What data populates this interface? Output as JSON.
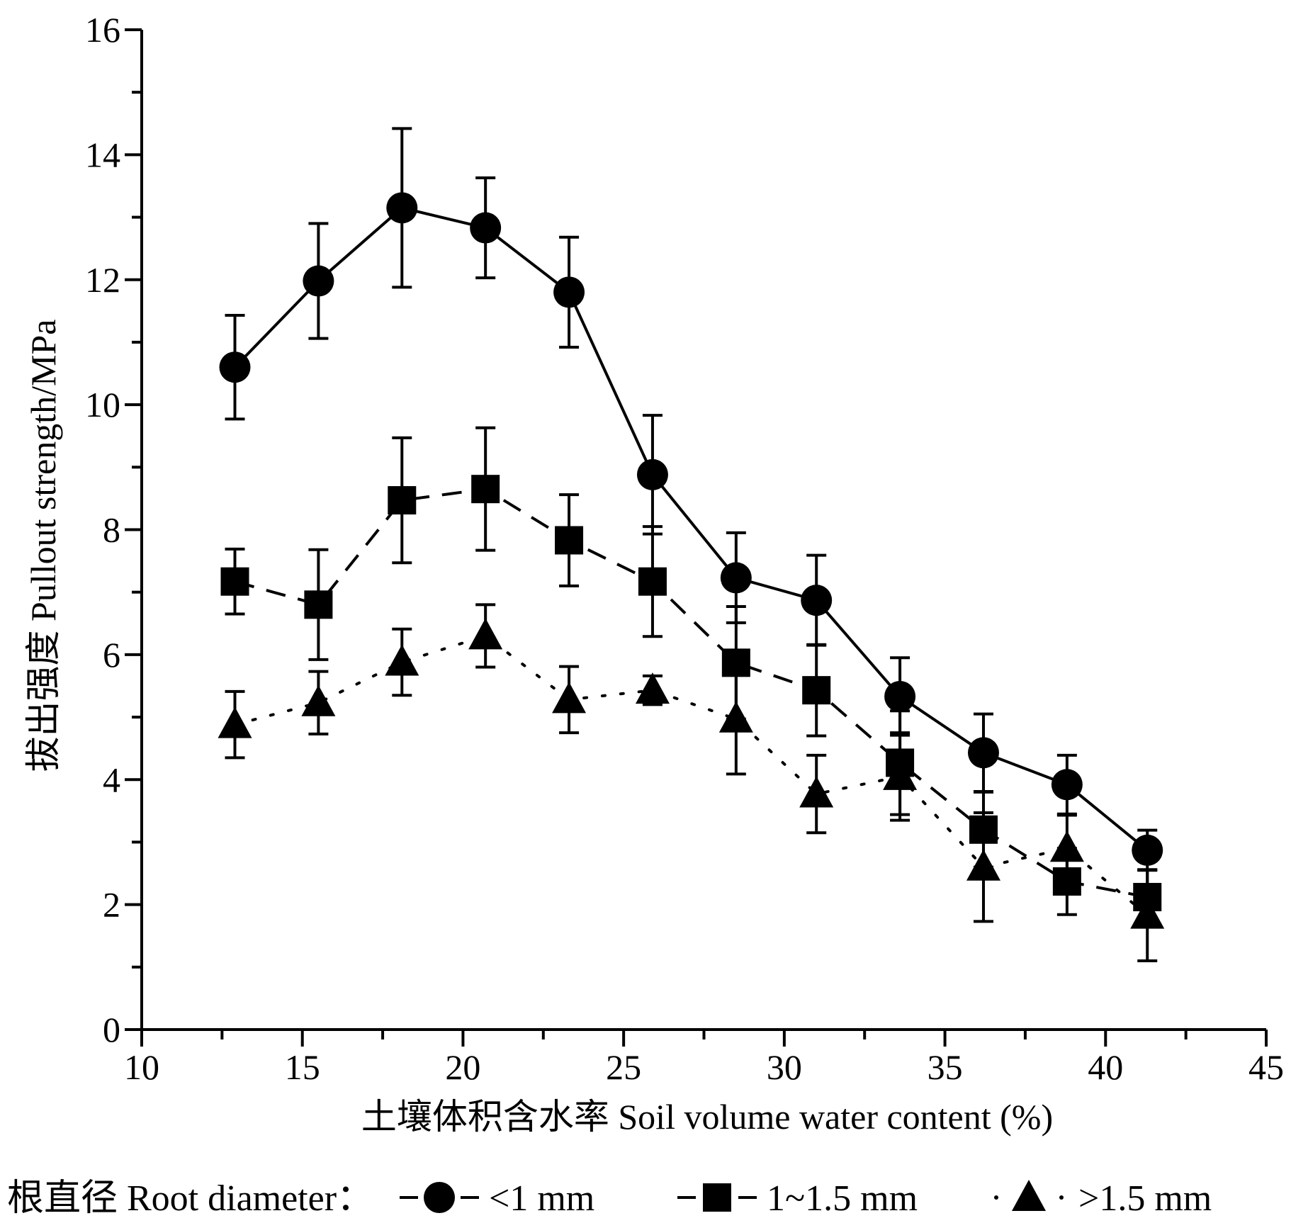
{
  "chart_data": {
    "type": "line",
    "xlabel": "土壤体积含水率  Soil volume water content (%)",
    "ylabel": "拔出强度  Pullout strength/MPa",
    "xlim": [
      10,
      45
    ],
    "ylim": [
      0,
      16
    ],
    "x_ticks": [
      10,
      15,
      20,
      25,
      30,
      35,
      40,
      45
    ],
    "y_ticks": [
      0,
      2,
      4,
      6,
      8,
      10,
      12,
      14,
      16
    ],
    "grid": false,
    "legend": {
      "placement": "bottom",
      "title": "根直径  Root diameter："
    },
    "series": [
      {
        "name": "<1 mm",
        "marker": "circle",
        "line": "solid",
        "x": [
          12.9,
          15.5,
          18.1,
          20.7,
          23.3,
          25.9,
          28.5,
          31.0,
          33.6,
          36.2,
          38.8,
          41.3
        ],
        "y": [
          10.6,
          11.98,
          13.15,
          12.83,
          11.8,
          8.88,
          7.23,
          6.87,
          5.33,
          4.43,
          3.92,
          2.87
        ],
        "err": [
          0.83,
          0.92,
          1.27,
          0.8,
          0.88,
          0.95,
          0.72,
          0.72,
          0.62,
          0.62,
          0.47,
          0.32
        ]
      },
      {
        "name": "1~1.5 mm",
        "marker": "square",
        "line": "dashed",
        "x": [
          12.9,
          15.5,
          18.1,
          20.7,
          23.3,
          25.9,
          28.5,
          31.0,
          33.6,
          36.2,
          38.8,
          41.3
        ],
        "y": [
          7.17,
          6.8,
          8.47,
          8.65,
          7.83,
          7.17,
          5.87,
          5.43,
          4.27,
          3.2,
          2.37,
          2.12
        ],
        "err": [
          0.52,
          0.88,
          1.0,
          0.98,
          0.73,
          0.88,
          0.9,
          0.73,
          0.83,
          0.6,
          0.53,
          0.43
        ]
      },
      {
        "name": ">1.5 mm",
        "marker": "triangle",
        "line": "dotted",
        "x": [
          12.9,
          15.5,
          18.1,
          20.7,
          23.3,
          25.9,
          28.5,
          31.0,
          33.6,
          36.2,
          38.8,
          41.3
        ],
        "y": [
          4.88,
          5.23,
          5.88,
          6.3,
          5.28,
          5.43,
          4.97,
          3.77,
          4.05,
          2.6,
          2.9,
          1.83
        ],
        "err": [
          0.53,
          0.5,
          0.53,
          0.5,
          0.53,
          0.23,
          0.88,
          0.62,
          0.7,
          0.87,
          0.53,
          0.73
        ]
      }
    ]
  }
}
